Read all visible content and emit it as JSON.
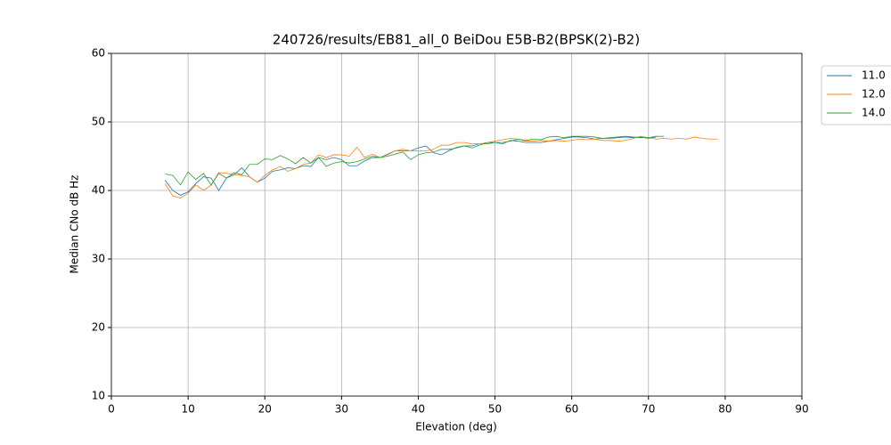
{
  "chart_data": {
    "type": "line",
    "title": "240726/results/EB81_all_0 BeiDou E5B-B2(BPSK(2)-B2)",
    "xlabel": "Elevation (deg)",
    "ylabel": "Median CNo dB Hz",
    "x": [
      7,
      8,
      9,
      10,
      11,
      12,
      13,
      14,
      15,
      16,
      17,
      18,
      19,
      20,
      21,
      22,
      23,
      24,
      25,
      26,
      27,
      28,
      29,
      30,
      31,
      32,
      33,
      34,
      35,
      36,
      37,
      38,
      39,
      40,
      41,
      42,
      43,
      44,
      45,
      46,
      47,
      48,
      49,
      50,
      51,
      52,
      53,
      54,
      55,
      56,
      57,
      58,
      59,
      60,
      61,
      62,
      63,
      64,
      65,
      66,
      67,
      68,
      69,
      70,
      71,
      72,
      73,
      74,
      75,
      76,
      77,
      78,
      79
    ],
    "series": [
      {
        "name": "11.0",
        "color": "#1f77b4",
        "values": [
          41.5,
          40,
          39.3,
          39.8,
          41,
          42,
          41.8,
          40,
          41.8,
          42.3,
          43.3,
          42,
          41.2,
          41.8,
          42.8,
          43,
          43.3,
          43.2,
          43.6,
          43.5,
          44.8,
          44.5,
          44.8,
          44.5,
          43.6,
          43.6,
          44.3,
          44.8,
          44.8,
          45.3,
          45.8,
          45.8,
          45.8,
          46.2,
          46.5,
          45.5,
          45.2,
          45.8,
          46.3,
          46.5,
          46.5,
          46.8,
          46.8,
          47,
          46.8,
          47.3,
          47.2,
          47,
          47,
          47,
          47.2,
          47.4,
          47.6,
          47.8,
          47.8,
          47.7,
          47.5,
          47.6,
          47.6,
          47.7,
          47.8,
          47.7,
          47.8,
          47.6,
          47.8,
          null,
          null,
          null,
          null,
          null,
          null,
          null,
          null
        ]
      },
      {
        "name": "12.0",
        "color": "#ff7f0e",
        "values": [
          41,
          39.2,
          38.9,
          39.6,
          40.8,
          40,
          40.8,
          42.6,
          42.5,
          42.3,
          42.2,
          42,
          41.2,
          42.2,
          43,
          43.5,
          42.8,
          43.2,
          43.8,
          44,
          45.2,
          44.8,
          45.2,
          45.2,
          45,
          46.3,
          44.8,
          45.3,
          44.8,
          45.2,
          45.8,
          46,
          45.8,
          45.8,
          45.8,
          46,
          46.6,
          46.6,
          47,
          47,
          46.8,
          46.8,
          47,
          47.2,
          47.4,
          47.6,
          47.5,
          47.2,
          47.2,
          47.3,
          47.2,
          47.3,
          47.2,
          47.3,
          47.5,
          47.4,
          47.5,
          47.3,
          47.3,
          47.2,
          47.3,
          47.6,
          47.9,
          47.7,
          47.5,
          47.6,
          47.5,
          47.6,
          47.5,
          47.8,
          47.6,
          47.5,
          47.5
        ]
      },
      {
        "name": "14.0",
        "color": "#2ca02c",
        "values": [
          42.4,
          42.2,
          40.8,
          42.7,
          41.6,
          42.5,
          40.8,
          42.5,
          41.8,
          42.6,
          42.3,
          43.8,
          43.8,
          44.6,
          44.5,
          45.1,
          44.6,
          43.9,
          44.8,
          44,
          44.8,
          43.5,
          44,
          44.2,
          44,
          44.2,
          44.6,
          45,
          44.8,
          45,
          45.3,
          45.6,
          44.5,
          45.2,
          45.5,
          45.6,
          46,
          46,
          46.2,
          46.5,
          46.2,
          46.6,
          47,
          47,
          47,
          47.2,
          47.5,
          47.3,
          47.5,
          47.4,
          47.8,
          47.9,
          47.7,
          47.9,
          47.9,
          47.9,
          47.8,
          47.6,
          47.7,
          47.8,
          47.9,
          47.8,
          47.7,
          47.7,
          47.9,
          47.9,
          null,
          null,
          null,
          null,
          null,
          null,
          null
        ]
      }
    ],
    "xlim": [
      0,
      90
    ],
    "xticks": [
      0,
      10,
      20,
      30,
      40,
      50,
      60,
      70,
      80,
      90
    ],
    "ylim": [
      10,
      60
    ],
    "yticks": [
      10,
      20,
      30,
      40,
      50,
      60
    ],
    "grid": true,
    "legend": "outside upper right"
  }
}
